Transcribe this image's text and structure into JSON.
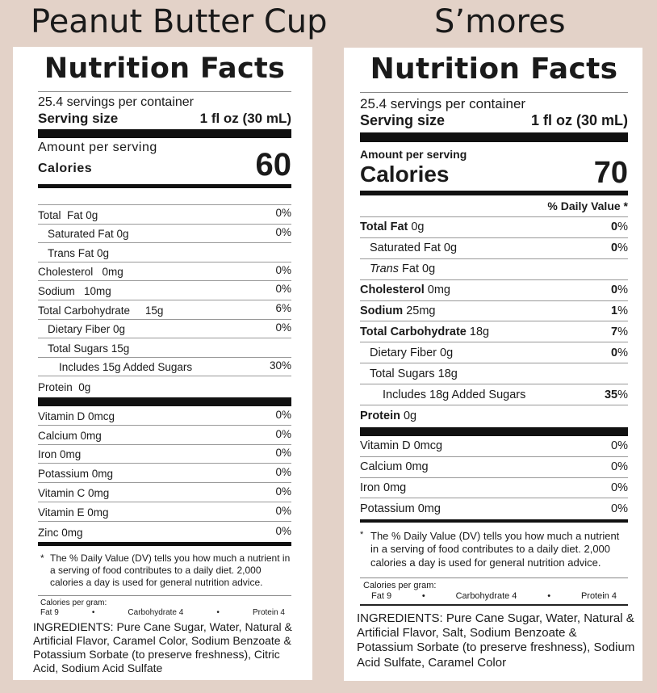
{
  "left": {
    "product_name": "Peanut Butter Cup",
    "heading": "Nutrition Facts",
    "servings_per_container": "25.4 servings per container",
    "serving_size_label": "Serving size",
    "serving_size_value": "1 fl oz (30 mL)",
    "amount_per_serving": "Amount per serving",
    "calories_label": "Calories",
    "calories_value": "60",
    "nutrients": [
      {
        "label": "Total  Fat 0g",
        "dv": "0%"
      },
      {
        "label": "Saturated Fat 0g",
        "dv": "0%"
      },
      {
        "label": "Trans Fat 0g",
        "dv": ""
      },
      {
        "label": "Cholesterol   0mg",
        "dv": "0%"
      },
      {
        "label": "Sodium   10mg",
        "dv": "0%"
      },
      {
        "label": "Total Carbohydrate     15g",
        "dv": "6%"
      },
      {
        "label": "Dietary Fiber 0g",
        "dv": "0%"
      },
      {
        "label": "Total Sugars 15g",
        "dv": ""
      },
      {
        "label": "Includes 15g Added Sugars",
        "dv": "30%"
      },
      {
        "label": "Protein  0g",
        "dv": ""
      }
    ],
    "vitamins": [
      {
        "label": "Vitamin D 0mcg",
        "dv": "0%"
      },
      {
        "label": "Calcium 0mg",
        "dv": "0%"
      },
      {
        "label": "Iron 0mg",
        "dv": "0%"
      },
      {
        "label": "Potassium 0mg",
        "dv": "0%"
      },
      {
        "label": "Vitamin C 0mg",
        "dv": "0%"
      },
      {
        "label": "Vitamin E 0mg",
        "dv": "0%"
      },
      {
        "label": "Zinc 0mg",
        "dv": "0%"
      }
    ],
    "footnote": "The % Daily Value (DV) tells you how much a nutrient in a serving of food contributes to a daily diet. 2,000 calories a day is used for general nutrition advice.",
    "calories_per_gram": "Calories per gram:",
    "cpg_items": [
      "Fat 9",
      "Carbohydrate 4",
      "Protein 4"
    ],
    "ingredients": "INGREDIENTS: Pure Cane Sugar, Water, Natural & Artificial Flavor, Caramel Color, Sodium Benzoate & Potassium Sorbate (to preserve freshness), Citric Acid, Sodium Acid Sulfate"
  },
  "right": {
    "product_name": "S’mores",
    "heading": "Nutrition Facts",
    "servings_per_container": "25.4 servings per container",
    "serving_size_label": "Serving size",
    "serving_size_value": "1 fl oz (30 mL)",
    "amount_per_serving": "Amount per serving",
    "calories_label": "Calories",
    "calories_value": "70",
    "daily_value_header": "% Daily Value *",
    "nutrients": [
      {
        "bold": "Total Fat",
        "rest": " 0g",
        "dv_bold": "0",
        "dv_rest": "%"
      },
      {
        "bold": "",
        "rest": "Saturated Fat 0g",
        "dv_bold": "0",
        "dv_rest": "%"
      },
      {
        "italic": "Trans",
        "rest": " Fat 0g",
        "dv_bold": "",
        "dv_rest": ""
      },
      {
        "bold": "Cholesterol",
        "rest": " 0mg",
        "dv_bold": "0",
        "dv_rest": "%"
      },
      {
        "bold": "Sodium",
        "rest": " 25mg",
        "dv_bold": "1",
        "dv_rest": "%"
      },
      {
        "bold": "Total Carbohydrate",
        "rest": " 18g",
        "dv_bold": "7",
        "dv_rest": "%"
      },
      {
        "bold": "",
        "rest": "Dietary Fiber 0g",
        "dv_bold": "0",
        "dv_rest": "%"
      },
      {
        "bold": "",
        "rest": "Total Sugars 18g",
        "dv_bold": "",
        "dv_rest": ""
      },
      {
        "bold": "",
        "rest": "Includes 18g Added Sugars",
        "dv_bold": "35",
        "dv_rest": "%"
      },
      {
        "bold": "Protein",
        "rest": " 0g",
        "dv_bold": "",
        "dv_rest": ""
      }
    ],
    "vitamins": [
      {
        "label": "Vitamin D 0mcg",
        "dv": "0%"
      },
      {
        "label": "Calcium 0mg",
        "dv": "0%"
      },
      {
        "label": "Iron 0mg",
        "dv": "0%"
      },
      {
        "label": "Potassium 0mg",
        "dv": "0%"
      }
    ],
    "footnote": "The % Daily Value (DV) tells you how much a nutrient in a serving of food contributes to a daily diet. 2,000 calories a day is used for general nutrition advice.",
    "calories_per_gram": "Calories per gram:",
    "cpg_items": [
      "Fat 9",
      "Carbohydrate 4",
      "Protein 4"
    ],
    "ingredients": "INGREDIENTS: Pure Cane Sugar, Water, Natural & Artificial Flavor, Salt, Sodium Benzoate & Potassium Sorbate (to preserve freshness), Sodium Acid Sulfate, Caramel Color"
  },
  "colors": {
    "background": "#e3d2c8",
    "panel": "#ffffff",
    "text": "#1a1a1a"
  }
}
